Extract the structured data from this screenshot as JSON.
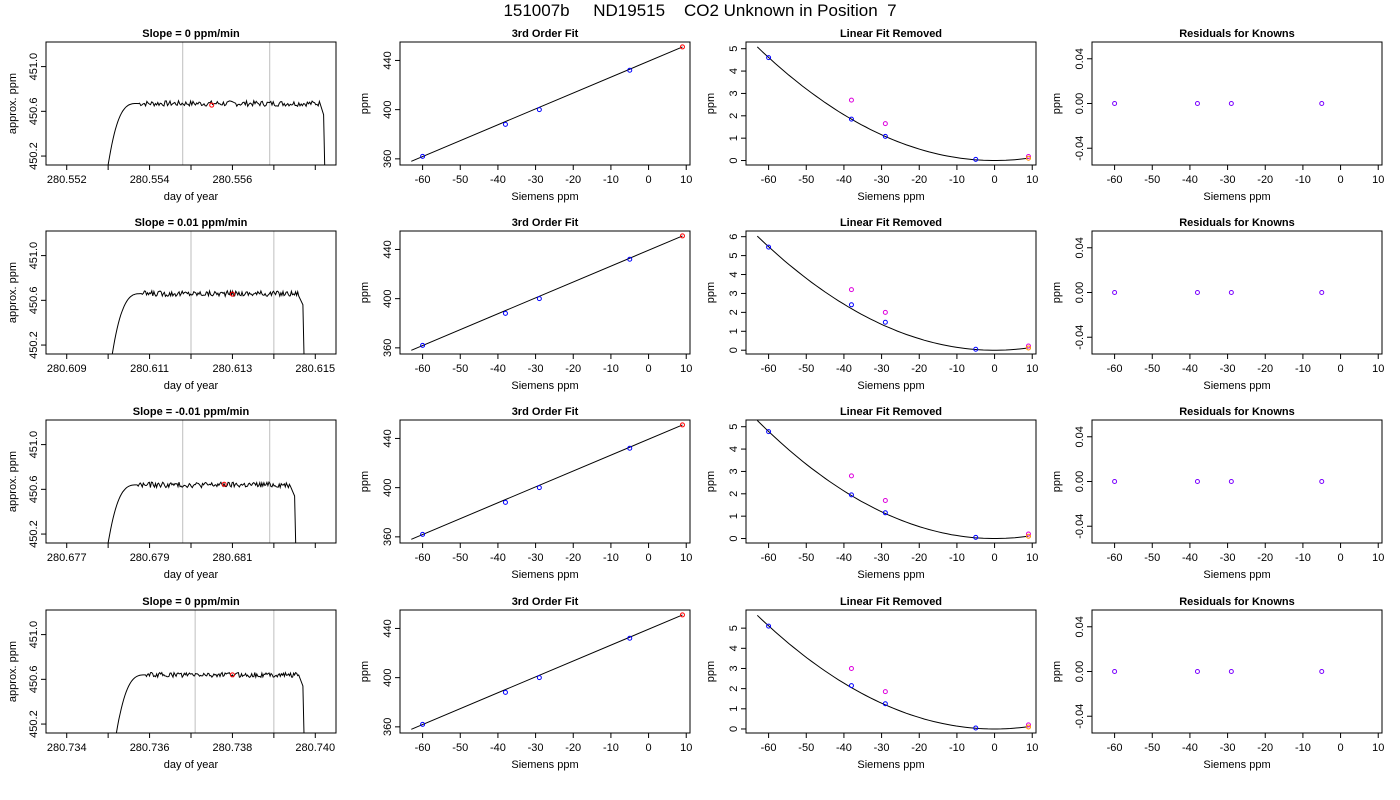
{
  "figure_title": "151007b     ND19515    CO2 Unknown in Position  7",
  "colors": {
    "line": "#000000",
    "vline": "#bebebe",
    "blue": "#0000ff",
    "red": "#ff0000",
    "magenta": "#dd00dd",
    "orange": "#ff8c00",
    "purple": "#7a00ff"
  },
  "chart_data": [
    {
      "type": "line",
      "title": "Slope =  0  ppm/min",
      "xlabel": "day of year",
      "ylabel": "approx. ppm",
      "xlim": [
        280.5515,
        280.5585
      ],
      "ylim": [
        450.12,
        451.22
      ],
      "xticks": [
        280.552,
        280.553,
        280.554,
        280.555,
        280.556,
        280.557,
        280.558
      ],
      "xtick_labels": [
        "280.552",
        "",
        "280.554",
        "",
        "280.556",
        "",
        ""
      ],
      "yticks": [
        450.2,
        450.6,
        451.0
      ],
      "ytick_labels": [
        "450.2",
        "450.6",
        "451.0"
      ],
      "trace": {
        "x_start": 280.553,
        "x_plateau": 280.5537,
        "x_end": 280.5581,
        "x_drop": 280.5582,
        "start_y": 450.12,
        "level": 450.67,
        "noise": 0.025
      },
      "vlines": [
        280.5548,
        280.5569
      ],
      "marker": {
        "x": 280.5555,
        "y": 450.655
      }
    },
    {
      "type": "scatter",
      "title": "3rd Order Fit",
      "xlabel": "Siemens ppm",
      "ylabel": "ppm",
      "xlim": [
        -66,
        11
      ],
      "ylim": [
        355,
        455
      ],
      "xticks": [
        -60,
        -50,
        -40,
        -30,
        -20,
        -10,
        0,
        10
      ],
      "yticks": [
        360,
        400,
        440
      ],
      "fit": {
        "x0": -63,
        "x1": 9,
        "y0": 358,
        "y1": 451
      },
      "points": [
        {
          "x": -60,
          "y": 362
        },
        {
          "x": -38,
          "y": 388
        },
        {
          "x": -29,
          "y": 400
        },
        {
          "x": -5,
          "y": 432
        }
      ],
      "red_point": {
        "x": 9,
        "y": 451
      }
    },
    {
      "type": "scatter",
      "title": "Linear Fit Removed",
      "xlabel": "Siemens ppm",
      "ylabel": "ppm",
      "xlim": [
        -66,
        11
      ],
      "ylim": [
        -0.2,
        5.3
      ],
      "xticks": [
        -60,
        -50,
        -40,
        -30,
        -20,
        -10,
        0,
        10
      ],
      "yticks": [
        0,
        1,
        2,
        3,
        4,
        5
      ],
      "curve": {
        "x0": -63,
        "x1": 9,
        "k": 0.00128
      },
      "blue": [
        {
          "x": -60,
          "y": 4.6
        },
        {
          "x": -38,
          "y": 1.85
        },
        {
          "x": -29,
          "y": 1.08
        },
        {
          "x": -5,
          "y": 0.05
        }
      ],
      "magenta": [
        {
          "x": -38,
          "y": 2.7
        },
        {
          "x": -29,
          "y": 1.65
        },
        {
          "x": 9,
          "y": 0.18
        }
      ],
      "orange": [
        {
          "x": 9,
          "y": 0.1
        }
      ]
    },
    {
      "type": "scatter",
      "title": "Residuals for Knowns",
      "xlabel": "Siemens ppm",
      "ylabel": "ppm",
      "xlim": [
        -66,
        11
      ],
      "ylim": [
        -0.055,
        0.055
      ],
      "xticks": [
        -60,
        -50,
        -40,
        -30,
        -20,
        -10,
        0,
        10
      ],
      "yticks": [
        -0.04,
        0.0,
        0.04
      ],
      "ytick_labels": [
        "-0.04",
        "0.00",
        "0.04"
      ],
      "points": [
        {
          "x": -60,
          "y": 0
        },
        {
          "x": -38,
          "y": 0
        },
        {
          "x": -29,
          "y": 0
        },
        {
          "x": -5,
          "y": 0
        }
      ]
    },
    {
      "type": "line",
      "title": "Slope =  0.01  ppm/min",
      "xlabel": "day of year",
      "ylabel": "approx. ppm",
      "xlim": [
        280.6085,
        280.6155
      ],
      "ylim": [
        450.12,
        451.22
      ],
      "xticks": [
        280.609,
        280.61,
        280.611,
        280.612,
        280.613,
        280.614,
        280.615
      ],
      "xtick_labels": [
        "280.609",
        "",
        "280.611",
        "",
        "280.613",
        "",
        "280.615"
      ],
      "yticks": [
        450.2,
        450.6,
        451.0
      ],
      "ytick_labels": [
        "450.2",
        "450.6",
        "451.0"
      ],
      "trace": {
        "x_start": 280.6101,
        "x_plateau": 280.6108,
        "x_end": 280.6146,
        "x_drop": 280.6147,
        "start_y": 450.12,
        "level": 450.66,
        "noise": 0.025
      },
      "vlines": [
        280.612,
        280.614
      ],
      "marker": {
        "x": 280.613,
        "y": 450.655
      }
    },
    {
      "type": "scatter",
      "title": "3rd Order Fit",
      "xlabel": "Siemens ppm",
      "ylabel": "ppm",
      "xlim": [
        -66,
        11
      ],
      "ylim": [
        355,
        455
      ],
      "xticks": [
        -60,
        -50,
        -40,
        -30,
        -20,
        -10,
        0,
        10
      ],
      "yticks": [
        360,
        400,
        440
      ],
      "fit": {
        "x0": -63,
        "x1": 9,
        "y0": 358,
        "y1": 451
      },
      "points": [
        {
          "x": -60,
          "y": 362
        },
        {
          "x": -38,
          "y": 388
        },
        {
          "x": -29,
          "y": 400
        },
        {
          "x": -5,
          "y": 432
        }
      ],
      "red_point": {
        "x": 9,
        "y": 451
      }
    },
    {
      "type": "scatter",
      "title": "Linear Fit Removed",
      "xlabel": "Siemens ppm",
      "ylabel": "ppm",
      "xlim": [
        -66,
        11
      ],
      "ylim": [
        -0.2,
        6.3
      ],
      "xticks": [
        -60,
        -50,
        -40,
        -30,
        -20,
        -10,
        0,
        10
      ],
      "yticks": [
        0,
        1,
        2,
        3,
        4,
        5,
        6
      ],
      "curve": {
        "x0": -63,
        "x1": 9,
        "k": 0.00152
      },
      "blue": [
        {
          "x": -60,
          "y": 5.45
        },
        {
          "x": -38,
          "y": 2.4
        },
        {
          "x": -29,
          "y": 1.48
        },
        {
          "x": -5,
          "y": 0.05
        }
      ],
      "magenta": [
        {
          "x": -38,
          "y": 3.2
        },
        {
          "x": -29,
          "y": 2.0
        },
        {
          "x": 9,
          "y": 0.22
        }
      ],
      "orange": [
        {
          "x": 9,
          "y": 0.12
        }
      ]
    },
    {
      "type": "scatter",
      "title": "Residuals for Knowns",
      "xlabel": "Siemens ppm",
      "ylabel": "ppm",
      "xlim": [
        -66,
        11
      ],
      "ylim": [
        -0.055,
        0.055
      ],
      "xticks": [
        -60,
        -50,
        -40,
        -30,
        -20,
        -10,
        0,
        10
      ],
      "yticks": [
        -0.04,
        0.0,
        0.04
      ],
      "ytick_labels": [
        "-0.04",
        "0.00",
        "0.04"
      ],
      "points": [
        {
          "x": -60,
          "y": 0
        },
        {
          "x": -38,
          "y": 0
        },
        {
          "x": -29,
          "y": 0
        },
        {
          "x": -5,
          "y": 0
        }
      ]
    },
    {
      "type": "line",
      "title": "Slope =  -0.01  ppm/min",
      "xlabel": "day of year",
      "ylabel": "approx. ppm",
      "xlim": [
        280.6765,
        280.6835
      ],
      "ylim": [
        450.12,
        451.22
      ],
      "xticks": [
        280.677,
        280.678,
        280.679,
        280.68,
        280.681,
        280.682,
        280.683
      ],
      "xtick_labels": [
        "280.677",
        "",
        "280.679",
        "",
        "280.681",
        "",
        ""
      ],
      "yticks": [
        450.2,
        450.6,
        451.0
      ],
      "ytick_labels": [
        "450.2",
        "450.6",
        "451.0"
      ],
      "trace": {
        "x_start": 280.678,
        "x_plateau": 280.6787,
        "x_end": 280.6824,
        "x_drop": 280.6825,
        "start_y": 450.12,
        "level": 450.64,
        "noise": 0.025
      },
      "vlines": [
        280.6798,
        280.6819
      ],
      "marker": {
        "x": 280.6808,
        "y": 450.645
      }
    },
    {
      "type": "scatter",
      "title": "3rd Order Fit",
      "xlabel": "Siemens ppm",
      "ylabel": "ppm",
      "xlim": [
        -66,
        11
      ],
      "ylim": [
        355,
        455
      ],
      "xticks": [
        -60,
        -50,
        -40,
        -30,
        -20,
        -10,
        0,
        10
      ],
      "yticks": [
        360,
        400,
        440
      ],
      "fit": {
        "x0": -63,
        "x1": 9,
        "y0": 358,
        "y1": 451
      },
      "points": [
        {
          "x": -60,
          "y": 362
        },
        {
          "x": -38,
          "y": 388
        },
        {
          "x": -29,
          "y": 400
        },
        {
          "x": -5,
          "y": 432
        }
      ],
      "red_point": {
        "x": 9,
        "y": 451
      }
    },
    {
      "type": "scatter",
      "title": "Linear Fit Removed",
      "xlabel": "Siemens ppm",
      "ylabel": "ppm",
      "xlim": [
        -66,
        11
      ],
      "ylim": [
        -0.2,
        5.3
      ],
      "xticks": [
        -60,
        -50,
        -40,
        -30,
        -20,
        -10,
        0,
        10
      ],
      "yticks": [
        0,
        1,
        2,
        3,
        4,
        5
      ],
      "curve": {
        "x0": -63,
        "x1": 9,
        "k": 0.00133
      },
      "blue": [
        {
          "x": -60,
          "y": 4.78
        },
        {
          "x": -38,
          "y": 1.95
        },
        {
          "x": -29,
          "y": 1.15
        },
        {
          "x": -5,
          "y": 0.05
        }
      ],
      "magenta": [
        {
          "x": -38,
          "y": 2.8
        },
        {
          "x": -29,
          "y": 1.7
        },
        {
          "x": 9,
          "y": 0.2
        }
      ],
      "orange": [
        {
          "x": 9,
          "y": 0.1
        }
      ]
    },
    {
      "type": "scatter",
      "title": "Residuals for Knowns",
      "xlabel": "Siemens ppm",
      "ylabel": "ppm",
      "xlim": [
        -66,
        11
      ],
      "ylim": [
        -0.055,
        0.055
      ],
      "xticks": [
        -60,
        -50,
        -40,
        -30,
        -20,
        -10,
        0,
        10
      ],
      "yticks": [
        -0.04,
        0.0,
        0.04
      ],
      "ytick_labels": [
        "-0.04",
        "0.00",
        "0.04"
      ],
      "points": [
        {
          "x": -60,
          "y": 0
        },
        {
          "x": -38,
          "y": 0
        },
        {
          "x": -29,
          "y": 0
        },
        {
          "x": -5,
          "y": 0
        }
      ]
    },
    {
      "type": "line",
      "title": "Slope =  0  ppm/min",
      "xlabel": "day of year",
      "ylabel": "approx. ppm",
      "xlim": [
        280.7335,
        280.7405
      ],
      "ylim": [
        450.12,
        451.22
      ],
      "xticks": [
        280.734,
        280.735,
        280.736,
        280.737,
        280.738,
        280.739,
        280.74
      ],
      "xtick_labels": [
        "280.734",
        "",
        "280.736",
        "",
        "280.738",
        "",
        "280.740"
      ],
      "yticks": [
        450.2,
        450.6,
        451.0
      ],
      "ytick_labels": [
        "450.2",
        "450.6",
        "451.0"
      ],
      "trace": {
        "x_start": 280.7352,
        "x_plateau": 280.7359,
        "x_end": 280.7396,
        "x_drop": 280.7397,
        "start_y": 450.12,
        "level": 450.64,
        "noise": 0.022
      },
      "vlines": [
        280.7371,
        280.739
      ],
      "marker": {
        "x": 280.738,
        "y": 450.64
      }
    },
    {
      "type": "scatter",
      "title": "3rd Order Fit",
      "xlabel": "Siemens ppm",
      "ylabel": "ppm",
      "xlim": [
        -66,
        11
      ],
      "ylim": [
        355,
        455
      ],
      "xticks": [
        -60,
        -50,
        -40,
        -30,
        -20,
        -10,
        0,
        10
      ],
      "yticks": [
        360,
        400,
        440
      ],
      "fit": {
        "x0": -63,
        "x1": 9,
        "y0": 358,
        "y1": 451
      },
      "points": [
        {
          "x": -60,
          "y": 362
        },
        {
          "x": -38,
          "y": 388
        },
        {
          "x": -29,
          "y": 400
        },
        {
          "x": -5,
          "y": 432
        }
      ],
      "red_point": {
        "x": 9,
        "y": 451
      }
    },
    {
      "type": "scatter",
      "title": "Linear Fit Removed",
      "xlabel": "Siemens ppm",
      "ylabel": "ppm",
      "xlim": [
        -66,
        11
      ],
      "ylim": [
        -0.2,
        5.9
      ],
      "xticks": [
        -60,
        -50,
        -40,
        -30,
        -20,
        -10,
        0,
        10
      ],
      "yticks": [
        0,
        1,
        2,
        3,
        4,
        5
      ],
      "curve": {
        "x0": -63,
        "x1": 9,
        "k": 0.00142
      },
      "blue": [
        {
          "x": -60,
          "y": 5.1
        },
        {
          "x": -38,
          "y": 2.15
        },
        {
          "x": -29,
          "y": 1.25
        },
        {
          "x": -5,
          "y": 0.05
        }
      ],
      "magenta": [
        {
          "x": -38,
          "y": 3.0
        },
        {
          "x": -29,
          "y": 1.85
        },
        {
          "x": 9,
          "y": 0.2
        }
      ],
      "orange": [
        {
          "x": 9,
          "y": 0.1
        }
      ]
    },
    {
      "type": "scatter",
      "title": "Residuals for Knowns",
      "xlabel": "Siemens ppm",
      "ylabel": "ppm",
      "xlim": [
        -66,
        11
      ],
      "ylim": [
        -0.055,
        0.055
      ],
      "xticks": [
        -60,
        -50,
        -40,
        -30,
        -20,
        -10,
        0,
        10
      ],
      "yticks": [
        -0.04,
        0.0,
        0.04
      ],
      "ytick_labels": [
        "-0.04",
        "0.00",
        "0.04"
      ],
      "points": [
        {
          "x": -60,
          "y": 0
        },
        {
          "x": -38,
          "y": 0
        },
        {
          "x": -29,
          "y": 0
        },
        {
          "x": -5,
          "y": 0
        }
      ]
    }
  ]
}
